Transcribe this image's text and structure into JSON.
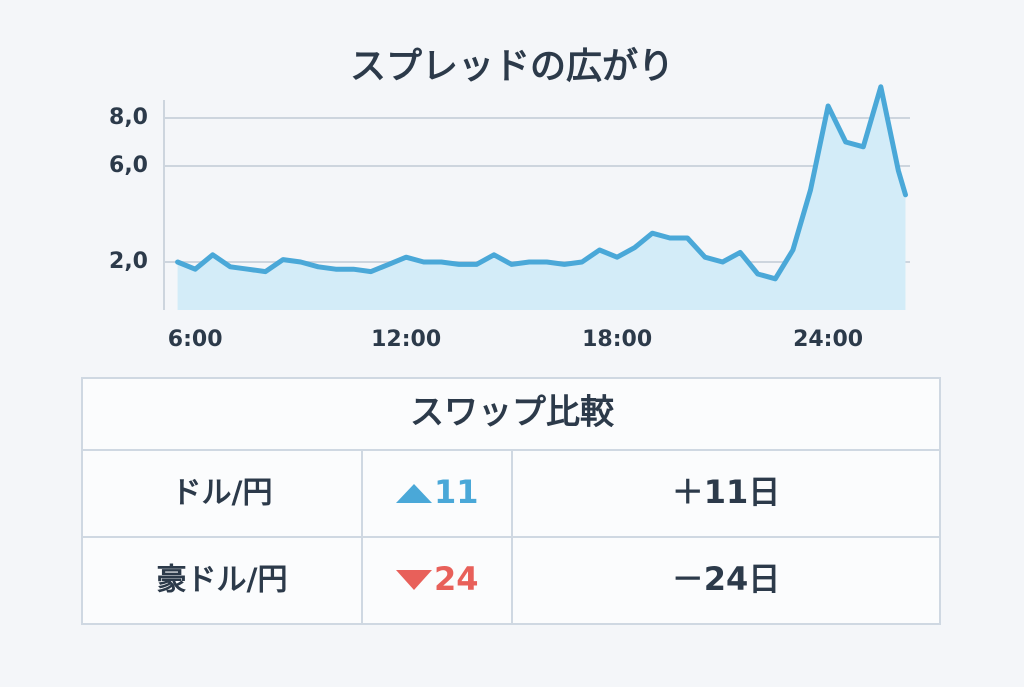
{
  "chart_data": {
    "type": "area",
    "title": "スプレッドの広がり",
    "x": [
      5.5,
      6,
      6.5,
      7,
      7.5,
      8,
      8.5,
      9,
      9.5,
      10,
      10.5,
      11,
      11.5,
      12,
      12.5,
      13,
      13.5,
      14,
      14.5,
      15,
      15.5,
      16,
      16.5,
      17,
      17.5,
      18,
      18.5,
      19,
      19.5,
      20,
      20.5,
      21,
      21.5,
      22,
      22.5,
      23,
      23.5,
      24,
      24.5,
      25,
      25.5,
      26,
      26.2
    ],
    "values": [
      2.0,
      1.7,
      2.3,
      1.8,
      1.7,
      1.6,
      2.1,
      2.0,
      1.8,
      1.7,
      1.7,
      1.6,
      1.9,
      2.2,
      2.0,
      2.0,
      1.9,
      1.9,
      2.3,
      1.9,
      2.0,
      2.0,
      1.9,
      2.0,
      2.5,
      2.2,
      2.6,
      3.2,
      3.0,
      3.0,
      2.2,
      2.0,
      2.4,
      1.5,
      1.3,
      2.5,
      5.0,
      8.5,
      7.0,
      6.8,
      9.3,
      5.8,
      4.8
    ],
    "color": "#4aa8d8",
    "xlim": [
      5,
      26.5
    ],
    "xticks": [
      {
        "value": 6,
        "label": "6:00"
      },
      {
        "value": 12,
        "label": "12:00"
      },
      {
        "value": 18,
        "label": "18:00"
      },
      {
        "value": 24,
        "label": "24:00"
      }
    ],
    "ylim": [
      0,
      10
    ],
    "yticks": [
      {
        "value": 2,
        "label": "2,0"
      },
      {
        "value": 6,
        "label": "6,0"
      },
      {
        "value": 8,
        "label": "8,0"
      }
    ],
    "grid": true
  },
  "table": {
    "title": "スワップ比較",
    "rows": [
      [
        "ドル/円",
        11,
        "＋11日"
      ],
      [
        "豪ドル/円",
        24,
        "－24日"
      ]
    ]
  }
}
